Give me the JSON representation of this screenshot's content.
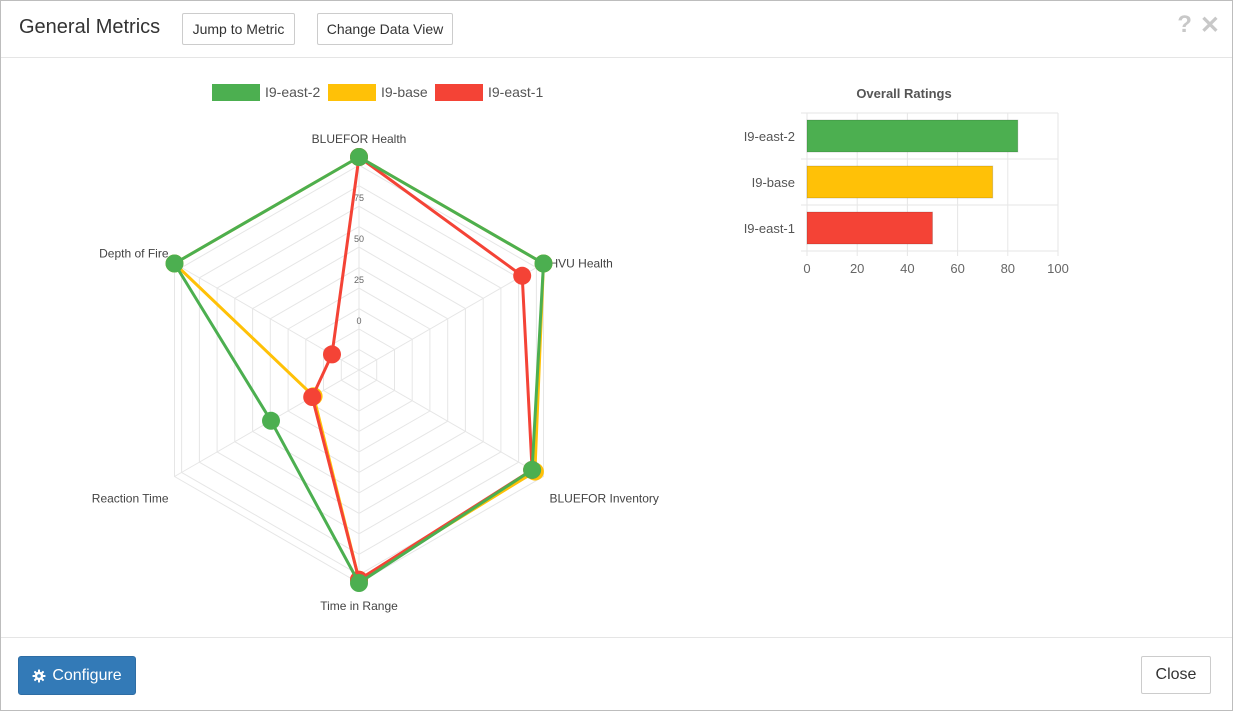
{
  "header": {
    "title": "General Metrics",
    "jump_label": "Jump to Metric",
    "change_view_label": "Change Data View",
    "help_icon": "question-icon",
    "close_icon": "close-x-icon"
  },
  "footer": {
    "configure_label": "Configure",
    "configure_icon": "gear-icon",
    "close_label": "Close"
  },
  "colors": {
    "I9-east-2": "#4caf50",
    "I9-base": "#ffc107",
    "I9-east-1": "#f44336",
    "primary": "#337ab7"
  },
  "chart_data": [
    {
      "type": "radar",
      "legend_placement": "top",
      "axes": [
        "BLUEFOR Health",
        "HVU Health",
        "BLUEFOR Inventory",
        "Time in Range",
        "Reaction Time",
        "Depth of Fire"
      ],
      "r_ticks": [
        "0",
        "25",
        "50",
        "75"
      ],
      "r_min": -30,
      "r_max": 100,
      "series": [
        {
          "name": "I9-east-2",
          "values": [
            100,
            100,
            92,
            100,
            32,
            100
          ]
        },
        {
          "name": "I9-base",
          "values": [
            100,
            100,
            94,
            98,
            2,
            100
          ]
        },
        {
          "name": "I9-east-1",
          "values": [
            100,
            85,
            92,
            98,
            3,
            -11
          ]
        }
      ]
    },
    {
      "type": "bar",
      "orientation": "horizontal",
      "title": "Overall Ratings",
      "categories": [
        "I9-east-2",
        "I9-base",
        "I9-east-1"
      ],
      "values": [
        84,
        74,
        50
      ],
      "xlim": [
        0,
        100
      ],
      "x_ticks": [
        "0",
        "20",
        "40",
        "60",
        "80",
        "100"
      ],
      "grid": true
    }
  ]
}
